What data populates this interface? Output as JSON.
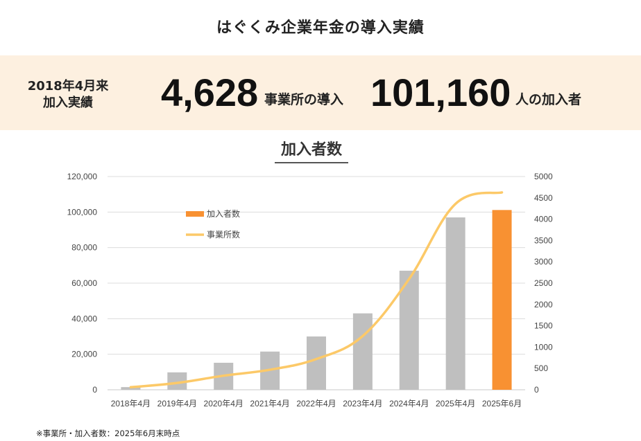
{
  "header": {
    "title": "はぐくみ企業年金の導入実績"
  },
  "banner": {
    "since_line1": "2018年4月来",
    "since_line2": "加入実績",
    "offices_value": "4,628",
    "offices_label": "事業所の導入",
    "members_value": "101,160",
    "members_label": "人の加入者"
  },
  "chart_data": {
    "type": "bar",
    "title": "加入者数",
    "categories": [
      "2018年4月",
      "2019年4月",
      "2020年4月",
      "2021年4月",
      "2022年4月",
      "2023年4月",
      "2024年4月",
      "2025年4月",
      "2025年6月"
    ],
    "series": [
      {
        "name": "加入者数",
        "type": "bar",
        "axis": "left",
        "values": [
          1500,
          9800,
          15200,
          21500,
          30000,
          43000,
          67000,
          97000,
          101160
        ],
        "colors": [
          "#bfbfbf",
          "#bfbfbf",
          "#bfbfbf",
          "#bfbfbf",
          "#bfbfbf",
          "#bfbfbf",
          "#bfbfbf",
          "#bfbfbf",
          "#f89132"
        ]
      },
      {
        "name": "事業所数",
        "type": "line",
        "axis": "right",
        "color": "#fcc968",
        "values": [
          60,
          160,
          330,
          470,
          720,
          1260,
          2600,
          4360,
          4628
        ]
      }
    ],
    "y_left": {
      "min": 0,
      "max": 120000,
      "ticks": [
        "0",
        "20,000",
        "40,000",
        "60,000",
        "80,000",
        "100,000",
        "120,000"
      ]
    },
    "y_right": {
      "min": 0,
      "max": 5000,
      "ticks": [
        "0",
        "500",
        "1000",
        "1500",
        "2000",
        "2500",
        "3000",
        "3500",
        "4000",
        "4500",
        "5000"
      ]
    },
    "grid": true,
    "legend_position": "top-left"
  },
  "footnote": "※事業所・加入者数：2025年6月末時点"
}
